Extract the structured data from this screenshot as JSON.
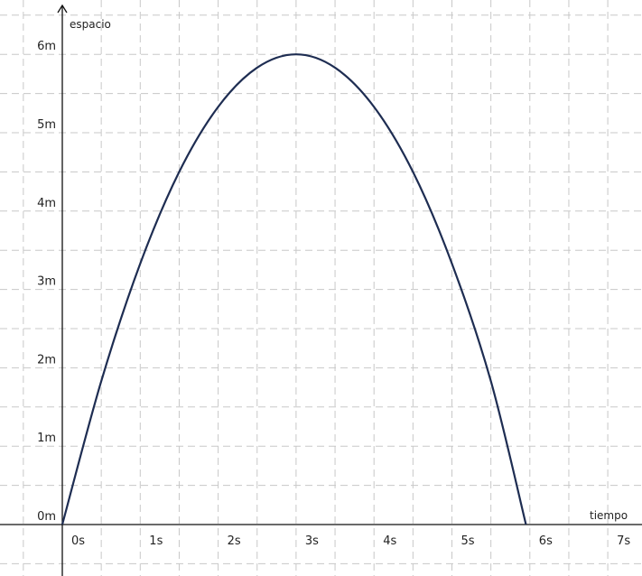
{
  "chart_data": {
    "type": "line",
    "xlabel": "tiempo",
    "ylabel": "espacio",
    "x_ticks": [
      "0s",
      "1s",
      "2s",
      "3s",
      "4s",
      "5s",
      "6s",
      "7s"
    ],
    "y_ticks": [
      "0m",
      "1m",
      "2m",
      "3m",
      "4m",
      "5m",
      "6m"
    ],
    "xlim": [
      0,
      7
    ],
    "ylim": [
      0,
      6
    ],
    "grid": true,
    "series": [
      {
        "color": "#1e2d52",
        "x": [
          0,
          0.5,
          1,
          1.5,
          2,
          2.5,
          3,
          3.5,
          4,
          4.5,
          5,
          5.5,
          5.95
        ],
        "y": [
          0,
          1.83,
          3.33,
          4.5,
          5.33,
          5.83,
          6,
          5.83,
          5.33,
          4.5,
          3.33,
          1.83,
          0
        ]
      }
    ]
  }
}
